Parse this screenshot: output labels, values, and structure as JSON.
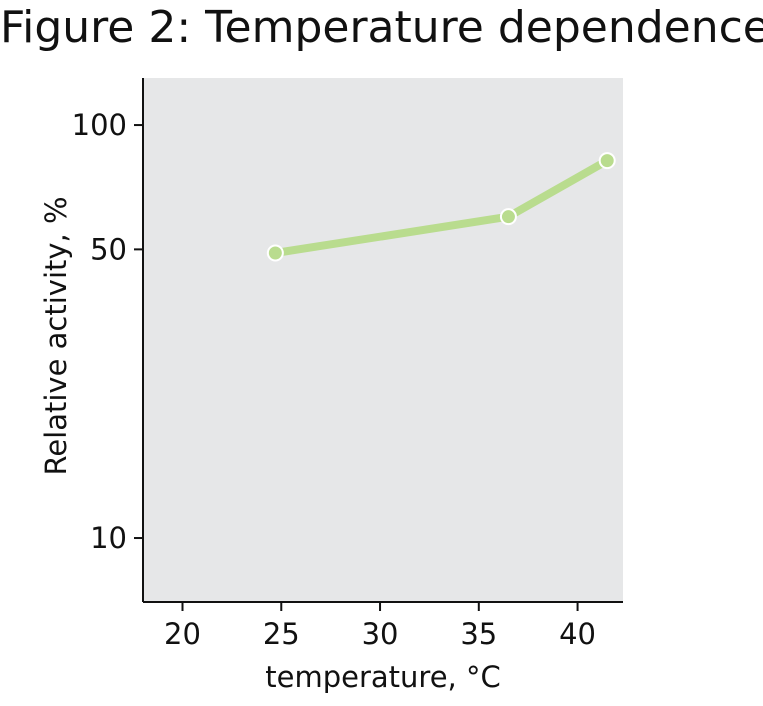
{
  "chart_data": {
    "type": "line",
    "title": "Figure 2: Temperature dependence",
    "xlabel": "temperature, °C",
    "ylabel": "Relative activity, %",
    "x_ticks": [
      20,
      25,
      30,
      35,
      40
    ],
    "y_ticks": [
      10,
      50,
      100
    ],
    "y_scale": "log",
    "xlim": [
      18,
      42.3
    ],
    "ylim": [
      7,
      130
    ],
    "grid": false,
    "legend": "none",
    "series": [
      {
        "color": "#b9dc8e",
        "x": [
          24.7,
          36.5,
          41.5
        ],
        "y": [
          49,
          60,
          82
        ]
      }
    ],
    "colors": {
      "plot_background": "#e6e7e8",
      "axis": "#111111"
    }
  }
}
